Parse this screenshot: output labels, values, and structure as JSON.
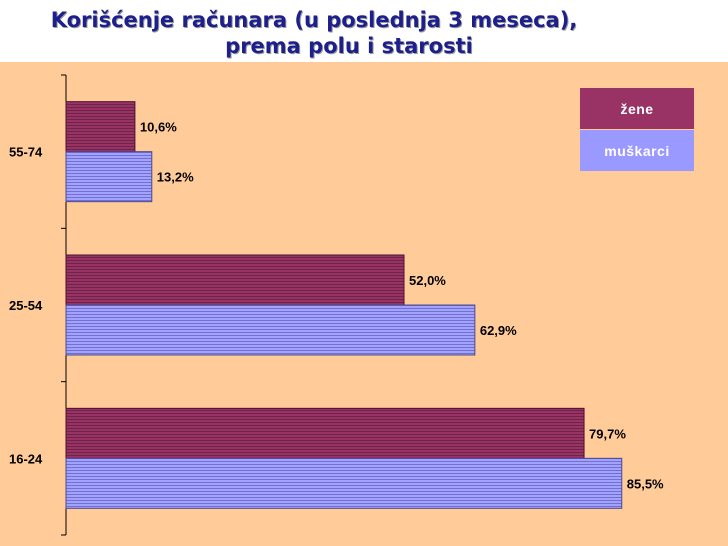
{
  "chart_data": {
    "type": "bar",
    "orientation": "horizontal",
    "title_lines": [
      "Korišćenje računara (u poslednja 3 meseca),",
      "prema polu i starosti"
    ],
    "categories": [
      "55-74",
      "25-54",
      "16-24"
    ],
    "series": [
      {
        "name": "žene",
        "values": [
          10.6,
          52.0,
          79.7
        ],
        "labels": [
          "10,6%",
          "52,0%",
          "79,7%"
        ],
        "color": "#993366"
      },
      {
        "name": "muškarci",
        "values": [
          13.2,
          62.9,
          85.5
        ],
        "labels": [
          "13,2%",
          "62,9%",
          "85,5%"
        ],
        "color": "#9999ff"
      }
    ],
    "xlim": [
      0,
      100
    ],
    "legend_position": "top-right",
    "grid": false
  },
  "colors": {
    "background": "#ffcc99",
    "title": "#1c1f8c"
  }
}
